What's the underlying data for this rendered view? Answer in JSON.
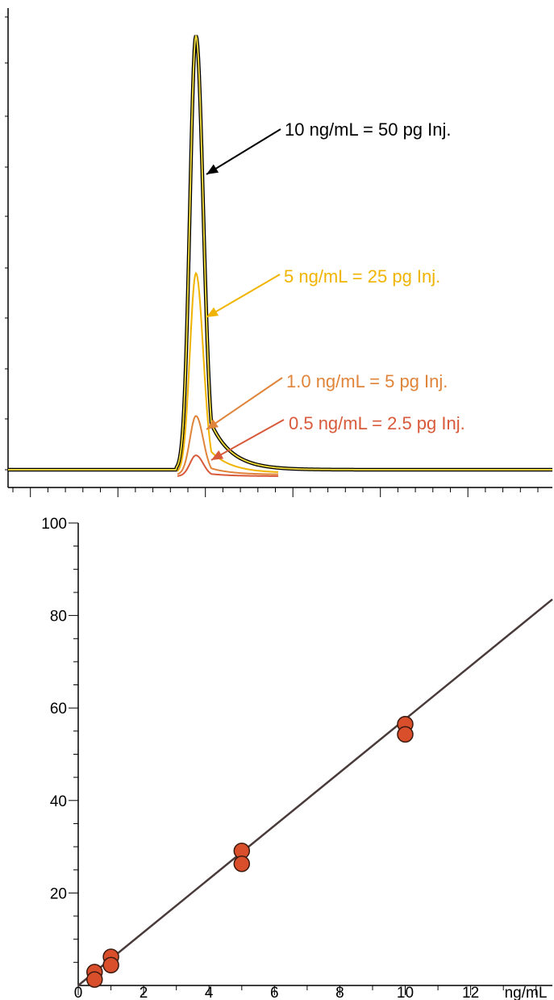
{
  "chart_data": [
    {
      "type": "line",
      "title": "",
      "xlabel": "",
      "ylabel": "",
      "grid": false,
      "legend": "none",
      "series": [
        {
          "label": "10 ng/mL = 50 pg Inj.",
          "color": "#000000",
          "fill_color": "#e8d23a",
          "peak_height": 1.0
        },
        {
          "label": "5 ng/mL = 25 pg Inj.",
          "color": "#f0b400",
          "peak_height": 0.46
        },
        {
          "label": "1.0 ng/mL = 5 pg Inj.",
          "color": "#e0843a",
          "peak_height": 0.135
        },
        {
          "label": "0.5 ng/mL = 2.5 pg Inj.",
          "color": "#d85a3a",
          "peak_height": 0.048
        }
      ]
    },
    {
      "type": "scatter",
      "title": "",
      "xlabel": "ng/mL",
      "ylabel": "",
      "xlim": [
        0,
        14.5
      ],
      "ylim": [
        0,
        100
      ],
      "x_ticks": [
        0,
        2,
        4,
        6,
        8,
        10,
        12
      ],
      "y_ticks": [
        20,
        40,
        60,
        80,
        100
      ],
      "grid": false,
      "point_color": "#d94f2b",
      "line_color": "#4a3b3b",
      "points": [
        {
          "x": 0.5,
          "y": 2.9
        },
        {
          "x": 0.5,
          "y": 1.3
        },
        {
          "x": 1.0,
          "y": 6.2
        },
        {
          "x": 1.0,
          "y": 4.4
        },
        {
          "x": 5.0,
          "y": 29.1
        },
        {
          "x": 5.0,
          "y": 26.3
        },
        {
          "x": 10.0,
          "y": 56.5
        },
        {
          "x": 10.0,
          "y": 54.3
        }
      ],
      "fit_line": {
        "x": [
          0,
          14.5
        ],
        "y": [
          0,
          83.5
        ]
      }
    }
  ]
}
